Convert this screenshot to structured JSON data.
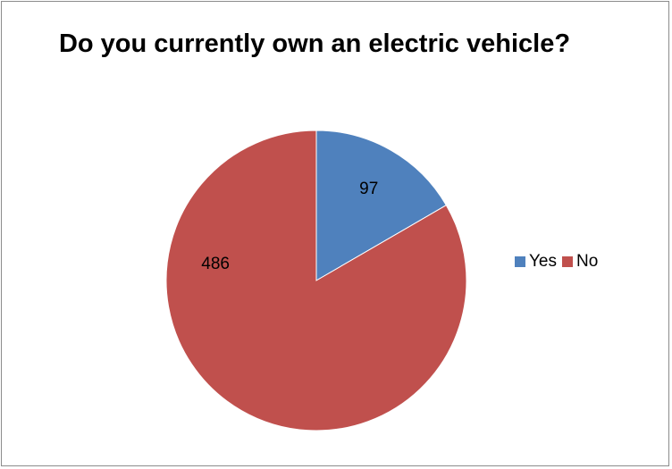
{
  "chart_data": {
    "type": "pie",
    "title": "Do you currently own an electric vehicle?",
    "categories": [
      "Yes",
      "No"
    ],
    "values": [
      97,
      486
    ],
    "data_labels": [
      "97",
      "486"
    ],
    "colors": [
      "#4f81bd",
      "#c0504d"
    ],
    "legend_position": "right"
  }
}
